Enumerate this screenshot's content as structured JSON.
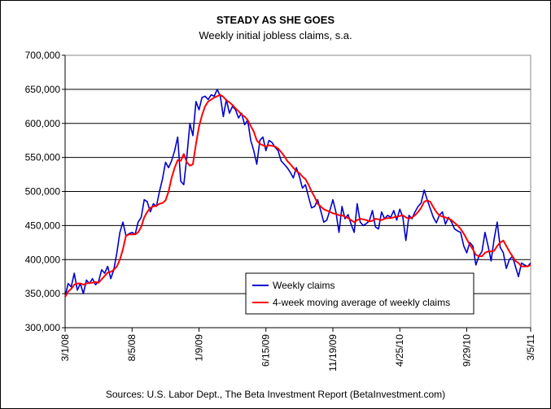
{
  "chart_data": {
    "type": "line",
    "title": "STEADY AS SHE GOES",
    "subtitle": "Weekly initial jobless claims, s.a.",
    "source": "Sources: U.S. Labor Dept., The Beta Investment Report (BetaInvestment.com)",
    "xlabel": "",
    "ylabel": "",
    "ylim": [
      300000,
      700000
    ],
    "y_ticks": [
      300000,
      350000,
      400000,
      450000,
      500000,
      550000,
      600000,
      650000,
      700000
    ],
    "y_tick_labels": [
      "300,000",
      "350,000",
      "400,000",
      "450,000",
      "500,000",
      "550,000",
      "600,000",
      "650,000",
      "700,000"
    ],
    "x_tick_labels": [
      "3/1/08",
      "8/5/08",
      "1/9/09",
      "6/15/09",
      "11/19/09",
      "4/25/10",
      "9/29/10",
      "3/5/11"
    ],
    "x_tick_index": [
      0,
      22,
      44,
      66,
      88,
      110,
      132,
      153
    ],
    "grid": "horizontal",
    "legend_position": "bottom-right",
    "colors": {
      "Weekly claims": "#0000cc",
      "4-week moving average of weekly claims": "#ff0000"
    },
    "series": [
      {
        "name": "Weekly claims",
        "values": [
          345000,
          365000,
          360000,
          380000,
          355000,
          365000,
          350000,
          370000,
          365000,
          372000,
          363000,
          368000,
          385000,
          380000,
          390000,
          372000,
          385000,
          410000,
          440000,
          455000,
          435000,
          438000,
          440000,
          437000,
          455000,
          462000,
          488000,
          485000,
          470000,
          482000,
          478000,
          500000,
          518000,
          543000,
          535000,
          545000,
          560000,
          580000,
          515000,
          510000,
          550000,
          600000,
          582000,
          632000,
          620000,
          638000,
          640000,
          635000,
          642000,
          640000,
          650000,
          640000,
          610000,
          635000,
          615000,
          625000,
          620000,
          608000,
          615000,
          598000,
          605000,
          575000,
          560000,
          540000,
          575000,
          580000,
          560000,
          575000,
          572000,
          565000,
          560000,
          545000,
          540000,
          535000,
          528000,
          520000,
          535000,
          522000,
          505000,
          510000,
          492000,
          476000,
          478000,
          488000,
          472000,
          455000,
          458000,
          472000,
          488000,
          470000,
          440000,
          478000,
          460000,
          466000,
          452000,
          440000,
          482000,
          455000,
          450000,
          453000,
          457000,
          472000,
          448000,
          445000,
          470000,
          460000,
          465000,
          462000,
          472000,
          458000,
          474000,
          462000,
          428000,
          465000,
          460000,
          470000,
          478000,
          483000,
          502000,
          488000,
          475000,
          462000,
          454000,
          465000,
          470000,
          452000,
          462000,
          455000,
          445000,
          442000,
          440000,
          420000,
          410000,
          425000,
          420000,
          392000,
          405000,
          412000,
          440000,
          420000,
          398000,
          430000,
          455000,
          418000,
          410000,
          387000,
          400000,
          405000,
          390000,
          375000,
          395000,
          392000,
          390000,
          395000
        ]
      },
      {
        "name": "4-week moving average of weekly claims",
        "values": [
          345000,
          353000,
          357000,
          363000,
          365000,
          365000,
          363000,
          365000,
          366000,
          366000,
          367000,
          366000,
          371000,
          376000,
          381000,
          382000,
          385000,
          390000,
          400000,
          415000,
          435000,
          437000,
          437000,
          437000,
          440000,
          448000,
          462000,
          470000,
          476000,
          478000,
          479000,
          482000,
          483000,
          487000,
          500000,
          520000,
          535000,
          546000,
          545000,
          555000,
          543000,
          538000,
          540000,
          570000,
          595000,
          612000,
          625000,
          632000,
          635000,
          638000,
          640000,
          642000,
          639000,
          634000,
          631000,
          627000,
          622000,
          618000,
          613000,
          610000,
          605000,
          596000,
          588000,
          575000,
          570000,
          568000,
          566000,
          568000,
          567000,
          566000,
          563000,
          558000,
          552000,
          545000,
          540000,
          535000,
          530000,
          527000,
          522000,
          518000,
          510000,
          500000,
          492000,
          482000,
          478000,
          474000,
          472000,
          470000,
          468000,
          467000,
          465000,
          465000,
          463000,
          461000,
          458000,
          455000,
          458000,
          460000,
          459000,
          458000,
          456000,
          457000,
          460000,
          459000,
          458000,
          460000,
          461000,
          461000,
          462000,
          463000,
          464000,
          465000,
          462000,
          460000,
          462000,
          465000,
          470000,
          476000,
          485000,
          487000,
          485000,
          477000,
          470000,
          465000,
          463000,
          462000,
          460000,
          458000,
          454000,
          450000,
          445000,
          438000,
          430000,
          422000,
          415000,
          407000,
          405000,
          405000,
          410000,
          412000,
          412000,
          413000,
          420000,
          425000,
          428000,
          420000,
          412000,
          405000,
          398000,
          395000,
          390000,
          390000,
          390000,
          392000
        ]
      }
    ]
  }
}
